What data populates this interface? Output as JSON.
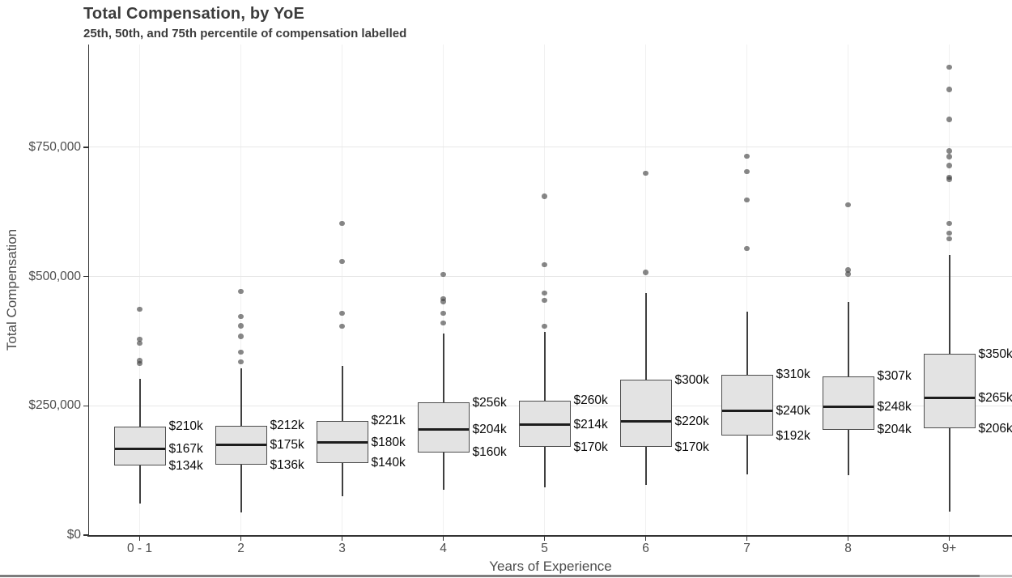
{
  "header": {
    "title": "Total Compensation, by YoE",
    "subtitle": "25th, 50th, and 75th percentile of compensation labelled"
  },
  "chart_data": {
    "type": "boxplot",
    "title": "Total Compensation, by YoE",
    "subtitle": "25th, 50th, and 75th percentile of compensation labelled",
    "xlabel": "Years of Experience",
    "ylabel": "Total Compensation",
    "ylim": [
      0,
      948000
    ],
    "grid": "horizontal major gridlines at $250k steps, faint vertical guide per category, legend none",
    "y_ticks": [
      {
        "value": 0,
        "label": "$0"
      },
      {
        "value": 250000,
        "label": "$250,000"
      },
      {
        "value": 500000,
        "label": "$500,000"
      },
      {
        "value": 750000,
        "label": "$750,000"
      }
    ],
    "categories": [
      "0 - 1",
      "2",
      "3",
      "4",
      "5",
      "6",
      "7",
      "8",
      "9+"
    ],
    "boxes": [
      {
        "category": "0 - 1",
        "q1": 134000,
        "median": 167000,
        "q3": 210000,
        "whisker_low": 61000,
        "whisker_high": 302000,
        "outliers": [
          332000,
          337000,
          371000,
          379000,
          437000
        ],
        "labels": [
          "$210k",
          "$167k",
          "$134k"
        ]
      },
      {
        "category": "2",
        "q1": 136000,
        "median": 175000,
        "q3": 212000,
        "whisker_low": 44000,
        "whisker_high": 322000,
        "outliers": [
          335000,
          354000,
          384000,
          405000,
          423000,
          471000
        ],
        "labels": [
          "$212k",
          "$175k",
          "$136k"
        ]
      },
      {
        "category": "3",
        "q1": 140000,
        "median": 180000,
        "q3": 221000,
        "whisker_low": 75000,
        "whisker_high": 327000,
        "outliers": [
          404000,
          429000,
          529000,
          603000
        ],
        "labels": [
          "$221k",
          "$180k",
          "$140k"
        ]
      },
      {
        "category": "4",
        "q1": 160000,
        "median": 204000,
        "q3": 256000,
        "whisker_low": 88000,
        "whisker_high": 390000,
        "outliers": [
          410000,
          429000,
          452000,
          457000,
          504000
        ],
        "labels": [
          "$256k",
          "$204k",
          "$160k"
        ]
      },
      {
        "category": "5",
        "q1": 170000,
        "median": 214000,
        "q3": 260000,
        "whisker_low": 92000,
        "whisker_high": 393000,
        "outliers": [
          404000,
          454000,
          468000,
          523000,
          655000
        ],
        "labels": [
          "$260k",
          "$214k",
          "$170k"
        ]
      },
      {
        "category": "6",
        "q1": 170000,
        "median": 220000,
        "q3": 300000,
        "whisker_low": 97000,
        "whisker_high": 468000,
        "outliers": [
          508000,
          700000
        ],
        "labels": [
          "$300k",
          "$220k",
          "$170k"
        ]
      },
      {
        "category": "7",
        "q1": 192000,
        "median": 240000,
        "q3": 310000,
        "whisker_low": 117000,
        "whisker_high": 432000,
        "outliers": [
          554000,
          648000,
          703000,
          733000
        ],
        "labels": [
          "$310k",
          "$240k",
          "$192k"
        ]
      },
      {
        "category": "8",
        "q1": 204000,
        "median": 248000,
        "q3": 307000,
        "whisker_low": 116000,
        "whisker_high": 451000,
        "outliers": [
          505000,
          513000,
          639000
        ],
        "labels": [
          "$307k",
          "$248k",
          "$204k"
        ]
      },
      {
        "category": "9+",
        "q1": 206000,
        "median": 265000,
        "q3": 350000,
        "whisker_low": 45000,
        "whisker_high": 541000,
        "outliers": [
          573000,
          584000,
          603000,
          688000,
          692000,
          715000,
          732000,
          743000,
          804000,
          862000,
          905000
        ],
        "labels": [
          "$350k",
          "$265k",
          "$206k"
        ]
      }
    ]
  },
  "colors": {
    "title_text": "#3c3c3c",
    "axis_text": "#4d4d4d",
    "axis_line": "#333333",
    "gridline_horizontal": "#e7e7e7",
    "gridline_vertical": "#f0f0f0",
    "box_fill": "#e3e3e3",
    "box_border": "#4d4d4d",
    "median_line": "#1d1d1d",
    "whisker_line": "#3f3f3f",
    "outlier_dot": "#3e3e3e",
    "percentile_label_text": "#0a0a0a",
    "window_bottom_border": "#7d7d7d"
  }
}
